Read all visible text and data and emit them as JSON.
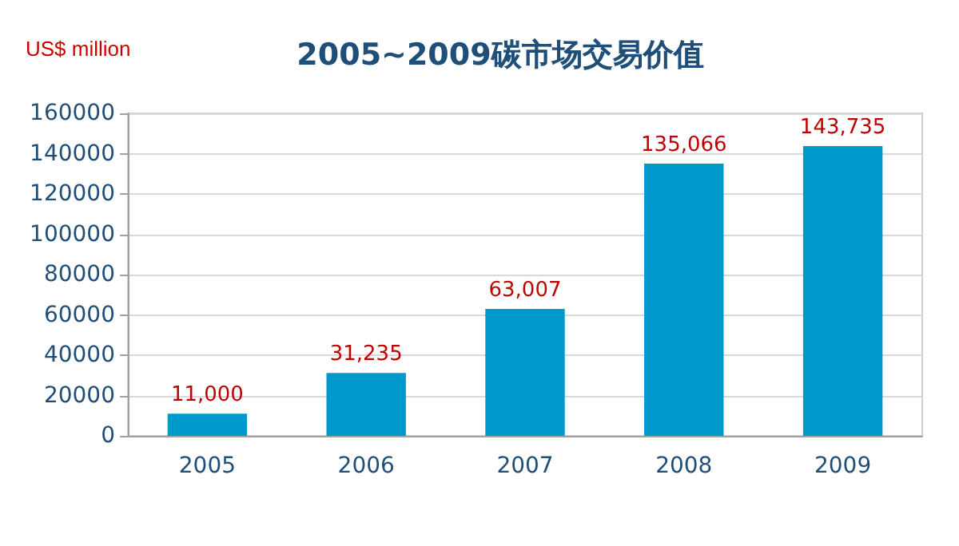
{
  "chart_data": {
    "type": "bar",
    "title": "2005~2009碳市场交易价值",
    "ylabel": "US$ million",
    "categories": [
      "2005",
      "2006",
      "2007",
      "2008",
      "2009"
    ],
    "values": [
      11000,
      31235,
      63007,
      135066,
      143735
    ],
    "value_labels": [
      "11,000",
      "31,235",
      "63,007",
      "135,066",
      "143,735"
    ],
    "color": "#0099cc",
    "ylim": [
      0,
      160000
    ],
    "yticks": [
      0,
      20000,
      40000,
      60000,
      80000,
      100000,
      120000,
      140000,
      160000
    ],
    "grid": "y"
  }
}
